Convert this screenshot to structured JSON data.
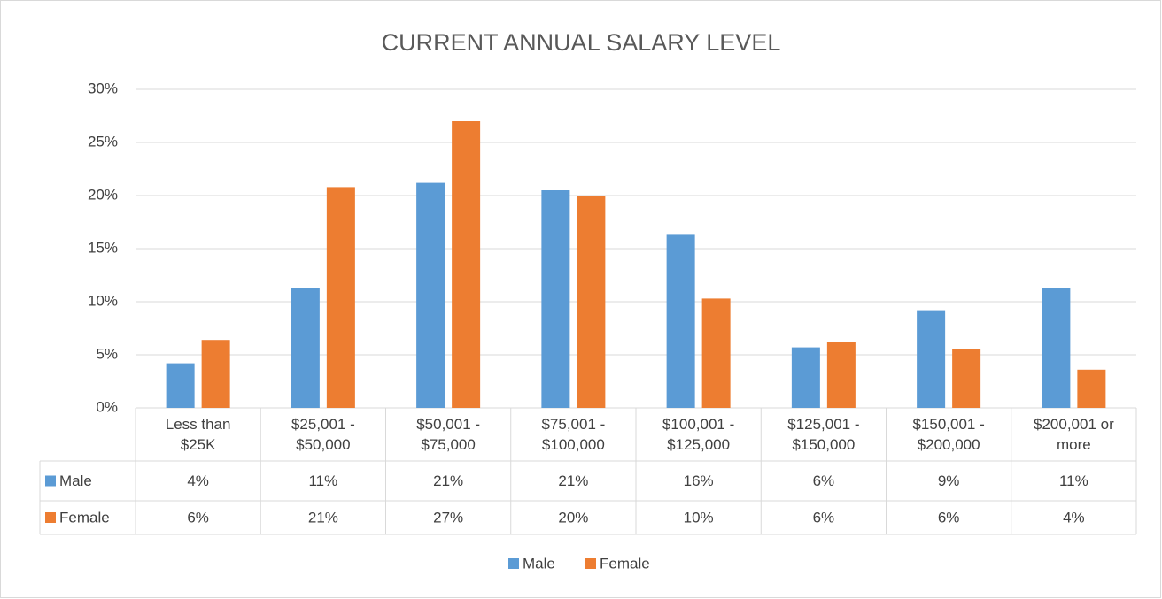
{
  "chart_data": {
    "type": "bar",
    "title": "CURRENT ANNUAL SALARY LEVEL",
    "categories": [
      "Less than $25K",
      "$25,001 - $50,000",
      "$50,001 - $75,000",
      "$75,001 - $100,000",
      "$100,001 - $125,000",
      "$125,001 - $150,000",
      "$150,001 - $200,000",
      "$200,001 or more"
    ],
    "series": [
      {
        "name": "Male",
        "color": "#5b9bd5",
        "values": [
          4.2,
          11.3,
          21.2,
          20.5,
          16.3,
          5.7,
          9.2,
          11.3
        ],
        "value_labels": [
          "4%",
          "11%",
          "21%",
          "21%",
          "16%",
          "6%",
          "9%",
          "11%"
        ]
      },
      {
        "name": "Female",
        "color": "#ed7d31",
        "values": [
          6.4,
          20.8,
          27.0,
          20.0,
          10.3,
          6.2,
          5.5,
          3.6
        ],
        "value_labels": [
          "6%",
          "21%",
          "27%",
          "20%",
          "10%",
          "6%",
          "6%",
          "4%"
        ]
      }
    ],
    "ylim": [
      0,
      30
    ],
    "yticks": [
      {
        "value": 0,
        "label": "0%"
      },
      {
        "value": 5,
        "label": "5%"
      },
      {
        "value": 10,
        "label": "10%"
      },
      {
        "value": 15,
        "label": "15%"
      },
      {
        "value": 20,
        "label": "20%"
      },
      {
        "value": 25,
        "label": "25%"
      },
      {
        "value": 30,
        "label": "30%"
      }
    ],
    "grid": true,
    "legend": "bottom"
  }
}
